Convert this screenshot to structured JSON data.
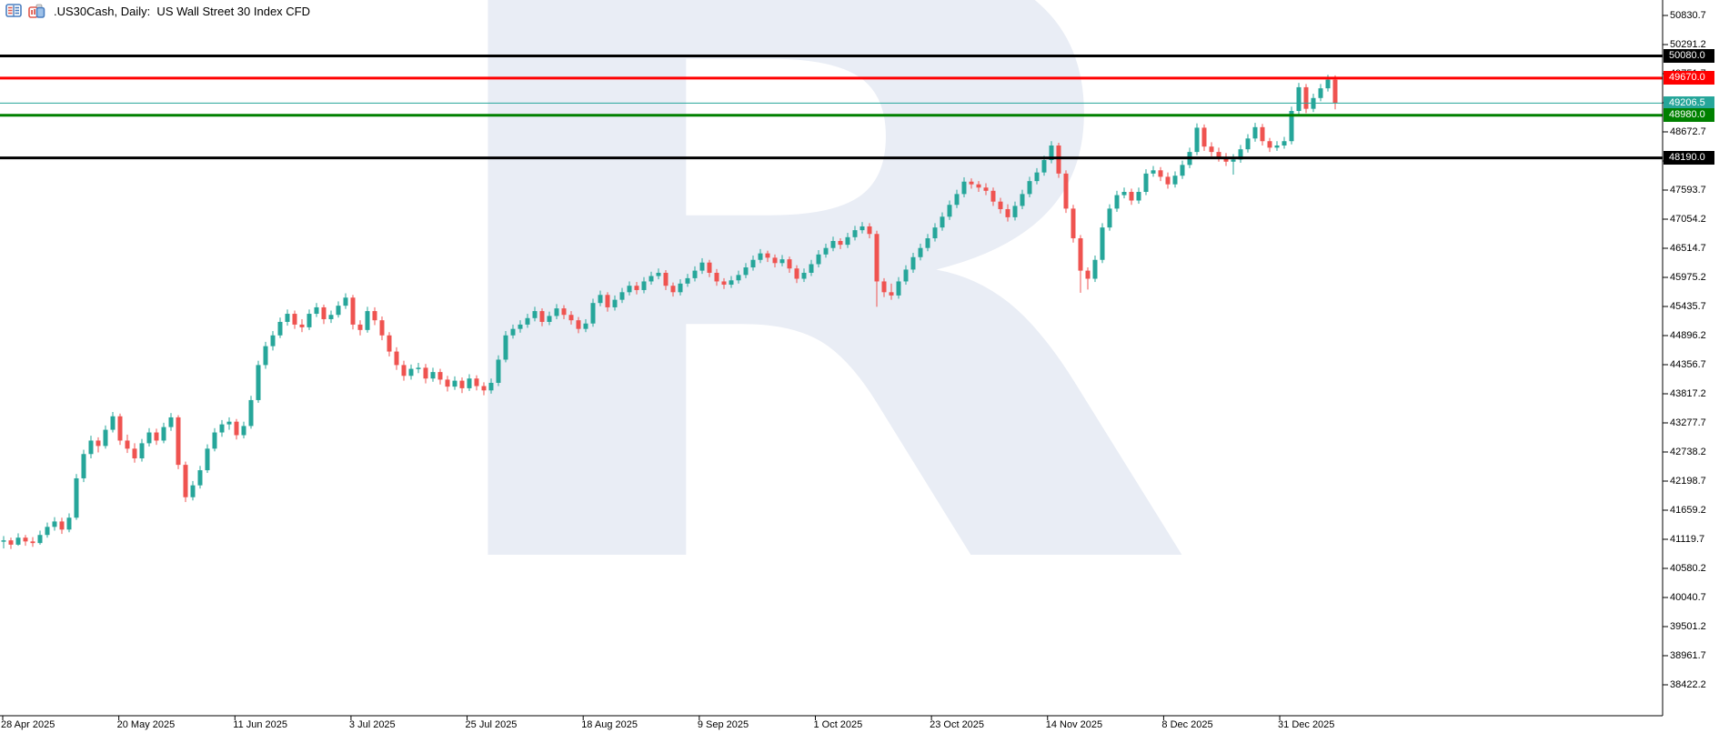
{
  "header": {
    "title": ".US30Cash, Daily:  US Wall Street 30 Index CFD",
    "icons": [
      {
        "name": "market-watch-icon"
      },
      {
        "name": "new-chart-icon"
      }
    ]
  },
  "watermark": {
    "letter": "R",
    "color": "#e9edf5"
  },
  "colors": {
    "background": "#ffffff",
    "axis": "#000000",
    "text": "#000000",
    "up_candle": "#26a69a",
    "down_candle": "#ef5350",
    "level_black": "#000000",
    "level_red": "#ff0000",
    "level_green": "#008000",
    "current_price": "#26a69a"
  },
  "chart_data": {
    "type": "candlestick",
    "symbol": ".US30Cash",
    "timeframe": "Daily",
    "description": "US Wall Street 30 Index CFD",
    "legend_title": ".US30Cash, Daily:  US Wall Street 30 Index CFD",
    "grid": false,
    "y_axis": {
      "side": "right",
      "tick_interval": 539.5,
      "ticks": [
        50830.7,
        50291.2,
        49751.7,
        49212.2,
        48672.7,
        48133.2,
        47593.7,
        47054.2,
        46514.7,
        45975.2,
        45435.7,
        44896.2,
        44356.7,
        43817.2,
        43277.7,
        42738.2,
        42198.7,
        41659.2,
        41119.7,
        40580.2,
        40040.7,
        39501.2,
        38961.7,
        38422.2
      ]
    },
    "x_axis": {
      "dates": [
        "28 Apr 2025",
        "20 May 2025",
        "11 Jun 2025",
        "3 Jul 2025",
        "25 Jul 2025",
        "18 Aug 2025",
        "9 Sep 2025",
        "1 Oct 2025",
        "23 Oct 2025",
        "14 Nov 2025",
        "8 Dec 2025",
        "31 Dec 2025"
      ]
    },
    "levels": [
      {
        "value": 50080.0,
        "label": "50080.0",
        "color": "#000000",
        "width": 3,
        "kind": "horizontal-line"
      },
      {
        "value": 49670.0,
        "label": "49670.0",
        "color": "#ff0000",
        "width": 3,
        "kind": "horizontal-line"
      },
      {
        "value": 49206.5,
        "label": "49206.5",
        "color": "#26a69a",
        "width": 1,
        "kind": "current-price-line"
      },
      {
        "value": 48980.0,
        "label": "48980.0",
        "color": "#008000",
        "width": 3,
        "kind": "horizontal-line"
      },
      {
        "value": 48190.0,
        "label": "48190.0",
        "color": "#000000",
        "width": 3,
        "kind": "horizontal-line"
      }
    ],
    "current_price": 49206.5,
    "candles": [
      [
        41080,
        41180,
        40950,
        41100
      ],
      [
        41100,
        41150,
        40940,
        41020
      ],
      [
        41020,
        41230,
        41000,
        41150
      ],
      [
        41150,
        41200,
        41000,
        41080
      ],
      [
        41080,
        41160,
        40980,
        41050
      ],
      [
        41050,
        41280,
        41020,
        41200
      ],
      [
        41200,
        41430,
        41150,
        41350
      ],
      [
        41350,
        41530,
        41280,
        41450
      ],
      [
        41450,
        41520,
        41220,
        41300
      ],
      [
        41300,
        41600,
        41250,
        41520
      ],
      [
        41520,
        42330,
        41480,
        42250
      ],
      [
        42250,
        42780,
        42180,
        42700
      ],
      [
        42700,
        43040,
        42620,
        42950
      ],
      [
        42950,
        43010,
        42730,
        42850
      ],
      [
        42850,
        43230,
        42800,
        43150
      ],
      [
        43150,
        43480,
        43100,
        43400
      ],
      [
        43400,
        43450,
        42870,
        42950
      ],
      [
        42950,
        43060,
        42720,
        42800
      ],
      [
        42800,
        42900,
        42540,
        42620
      ],
      [
        42620,
        42980,
        42560,
        42900
      ],
      [
        42900,
        43180,
        42840,
        43100
      ],
      [
        43100,
        43170,
        42870,
        42950
      ],
      [
        42950,
        43280,
        42900,
        43200
      ],
      [
        43200,
        43460,
        43130,
        43380
      ],
      [
        43380,
        43420,
        42420,
        42500
      ],
      [
        42500,
        42560,
        41810,
        41900
      ],
      [
        41900,
        42200,
        41840,
        42120
      ],
      [
        42120,
        42480,
        42060,
        42400
      ],
      [
        42400,
        42880,
        42350,
        42800
      ],
      [
        42800,
        43180,
        42750,
        43100
      ],
      [
        43100,
        43330,
        43020,
        43250
      ],
      [
        43250,
        43380,
        43150,
        43300
      ],
      [
        43300,
        43350,
        42970,
        43050
      ],
      [
        43050,
        43300,
        42990,
        43220
      ],
      [
        43220,
        43780,
        43170,
        43700
      ],
      [
        43700,
        44430,
        43650,
        44350
      ],
      [
        44350,
        44780,
        44280,
        44700
      ],
      [
        44700,
        44980,
        44620,
        44900
      ],
      [
        44900,
        45230,
        44850,
        45150
      ],
      [
        45150,
        45380,
        45080,
        45300
      ],
      [
        45300,
        45360,
        45020,
        45100
      ],
      [
        45100,
        45200,
        44960,
        45050
      ],
      [
        45050,
        45380,
        45000,
        45300
      ],
      [
        45300,
        45500,
        45240,
        45420
      ],
      [
        45420,
        45470,
        45110,
        45200
      ],
      [
        45200,
        45360,
        45130,
        45280
      ],
      [
        45280,
        45530,
        45230,
        45450
      ],
      [
        45450,
        45680,
        45390,
        45600
      ],
      [
        45600,
        45650,
        45010,
        45100
      ],
      [
        45100,
        45180,
        44900,
        45000
      ],
      [
        45000,
        45430,
        44950,
        45350
      ],
      [
        45350,
        45420,
        45090,
        45180
      ],
      [
        45180,
        45250,
        44810,
        44900
      ],
      [
        44900,
        44960,
        44510,
        44600
      ],
      [
        44600,
        44680,
        44260,
        44350
      ],
      [
        44350,
        44430,
        44060,
        44150
      ],
      [
        44150,
        44360,
        44080,
        44280
      ],
      [
        44280,
        44390,
        44200,
        44300
      ],
      [
        44300,
        44370,
        44010,
        44100
      ],
      [
        44100,
        44300,
        44040,
        44220
      ],
      [
        44220,
        44280,
        43990,
        44080
      ],
      [
        44080,
        44150,
        43860,
        43950
      ],
      [
        43950,
        44140,
        43890,
        44060
      ],
      [
        44060,
        44120,
        43830,
        43920
      ],
      [
        43920,
        44180,
        43870,
        44100
      ],
      [
        44100,
        44160,
        43880,
        43960
      ],
      [
        43960,
        44030,
        43790,
        43880
      ],
      [
        43880,
        44100,
        43820,
        44020
      ],
      [
        44020,
        44530,
        43960,
        44450
      ],
      [
        44450,
        44980,
        44400,
        44900
      ],
      [
        44900,
        45100,
        44840,
        45020
      ],
      [
        45020,
        45180,
        44950,
        45100
      ],
      [
        45100,
        45300,
        45040,
        45220
      ],
      [
        45220,
        45430,
        45160,
        45350
      ],
      [
        45350,
        45400,
        45070,
        45150
      ],
      [
        45150,
        45340,
        45090,
        45260
      ],
      [
        45260,
        45480,
        45200,
        45400
      ],
      [
        45400,
        45460,
        45200,
        45280
      ],
      [
        45280,
        45350,
        45100,
        45180
      ],
      [
        45180,
        45240,
        44940,
        45020
      ],
      [
        45020,
        45200,
        44960,
        45120
      ],
      [
        45120,
        45580,
        45060,
        45500
      ],
      [
        45500,
        45730,
        45440,
        45650
      ],
      [
        45650,
        45700,
        45340,
        45420
      ],
      [
        45420,
        45640,
        45360,
        45560
      ],
      [
        45560,
        45780,
        45500,
        45700
      ],
      [
        45700,
        45900,
        45640,
        45820
      ],
      [
        45820,
        45890,
        45660,
        45740
      ],
      [
        45740,
        45980,
        45680,
        45900
      ],
      [
        45900,
        46080,
        45840,
        46000
      ],
      [
        46000,
        46140,
        45940,
        46060
      ],
      [
        46060,
        46110,
        45740,
        45820
      ],
      [
        45820,
        45880,
        45620,
        45700
      ],
      [
        45700,
        45940,
        45640,
        45860
      ],
      [
        45860,
        46040,
        45800,
        45960
      ],
      [
        45960,
        46180,
        45900,
        46100
      ],
      [
        46100,
        46330,
        46040,
        46250
      ],
      [
        46250,
        46300,
        45980,
        46060
      ],
      [
        46060,
        46130,
        45820,
        45900
      ],
      [
        45900,
        45960,
        45760,
        45840
      ],
      [
        45840,
        46000,
        45780,
        45920
      ],
      [
        45920,
        46100,
        45860,
        46020
      ],
      [
        46020,
        46240,
        45960,
        46160
      ],
      [
        46160,
        46380,
        46100,
        46300
      ],
      [
        46300,
        46500,
        46240,
        46420
      ],
      [
        46420,
        46470,
        46260,
        46340
      ],
      [
        46340,
        46400,
        46160,
        46240
      ],
      [
        46240,
        46390,
        46180,
        46310
      ],
      [
        46310,
        46360,
        46060,
        46140
      ],
      [
        46140,
        46200,
        45870,
        45950
      ],
      [
        45950,
        46140,
        45890,
        46060
      ],
      [
        46060,
        46300,
        46000,
        46220
      ],
      [
        46220,
        46480,
        46160,
        46400
      ],
      [
        46400,
        46600,
        46340,
        46520
      ],
      [
        46520,
        46730,
        46460,
        46650
      ],
      [
        46650,
        46700,
        46500,
        46580
      ],
      [
        46580,
        46800,
        46520,
        46720
      ],
      [
        46720,
        46930,
        46660,
        46850
      ],
      [
        46850,
        47000,
        46790,
        46920
      ],
      [
        46920,
        46980,
        46700,
        46780
      ],
      [
        46780,
        46840,
        45430,
        45900
      ],
      [
        45900,
        45960,
        45610,
        45700
      ],
      [
        45700,
        45860,
        45560,
        45640
      ],
      [
        45640,
        45980,
        45580,
        45900
      ],
      [
        45900,
        46200,
        45840,
        46120
      ],
      [
        46120,
        46430,
        46060,
        46350
      ],
      [
        46350,
        46600,
        46290,
        46520
      ],
      [
        46520,
        46780,
        46460,
        46700
      ],
      [
        46700,
        46980,
        46640,
        46900
      ],
      [
        46900,
        47180,
        46840,
        47100
      ],
      [
        47100,
        47400,
        47040,
        47320
      ],
      [
        47320,
        47600,
        47260,
        47520
      ],
      [
        47520,
        47830,
        47460,
        47750
      ],
      [
        47750,
        47810,
        47620,
        47700
      ],
      [
        47700,
        47760,
        47560,
        47640
      ],
      [
        47640,
        47720,
        47500,
        47580
      ],
      [
        47580,
        47640,
        47300,
        47380
      ],
      [
        47380,
        47450,
        47160,
        47240
      ],
      [
        47240,
        47330,
        47010,
        47090
      ],
      [
        47090,
        47380,
        47030,
        47300
      ],
      [
        47300,
        47600,
        47240,
        47520
      ],
      [
        47520,
        47840,
        47460,
        47760
      ],
      [
        47760,
        48000,
        47700,
        47920
      ],
      [
        47920,
        48230,
        47860,
        48150
      ],
      [
        48150,
        48500,
        48090,
        48420
      ],
      [
        48420,
        48470,
        47820,
        47900
      ],
      [
        47900,
        47960,
        47170,
        47250
      ],
      [
        47250,
        47320,
        46620,
        46700
      ],
      [
        46700,
        46760,
        45690,
        46100
      ],
      [
        46100,
        46160,
        45750,
        45950
      ],
      [
        45950,
        46380,
        45890,
        46300
      ],
      [
        46300,
        46980,
        46240,
        46900
      ],
      [
        46900,
        47330,
        46840,
        47250
      ],
      [
        47250,
        47580,
        47190,
        47500
      ],
      [
        47500,
        47640,
        47440,
        47560
      ],
      [
        47560,
        47620,
        47320,
        47400
      ],
      [
        47400,
        47640,
        47340,
        47560
      ],
      [
        47560,
        47980,
        47500,
        47900
      ],
      [
        47900,
        48040,
        47840,
        47960
      ],
      [
        47960,
        48020,
        47760,
        47840
      ],
      [
        47840,
        47920,
        47620,
        47700
      ],
      [
        47700,
        47940,
        47640,
        47860
      ],
      [
        47860,
        48140,
        47800,
        48060
      ],
      [
        48060,
        48380,
        48000,
        48300
      ],
      [
        48300,
        48830,
        48240,
        48750
      ],
      [
        48750,
        48810,
        48320,
        48400
      ],
      [
        48400,
        48480,
        48220,
        48300
      ],
      [
        48300,
        48380,
        48120,
        48200
      ],
      [
        48200,
        48280,
        48040,
        48120
      ],
      [
        48120,
        48260,
        47880,
        48160
      ],
      [
        48160,
        48430,
        48100,
        48350
      ],
      [
        48350,
        48630,
        48290,
        48550
      ],
      [
        48550,
        48840,
        48490,
        48760
      ],
      [
        48760,
        48820,
        48420,
        48500
      ],
      [
        48500,
        48560,
        48300,
        48380
      ],
      [
        48380,
        48500,
        48320,
        48420
      ],
      [
        48420,
        48580,
        48360,
        48500
      ],
      [
        48500,
        49140,
        48440,
        49060
      ],
      [
        49060,
        49580,
        49000,
        49500
      ],
      [
        49500,
        49560,
        49020,
        49100
      ],
      [
        49100,
        49380,
        49040,
        49300
      ],
      [
        49300,
        49560,
        49240,
        49480
      ],
      [
        49480,
        49730,
        49420,
        49640
      ],
      [
        49640,
        49720,
        49090,
        49206.5
      ]
    ]
  }
}
